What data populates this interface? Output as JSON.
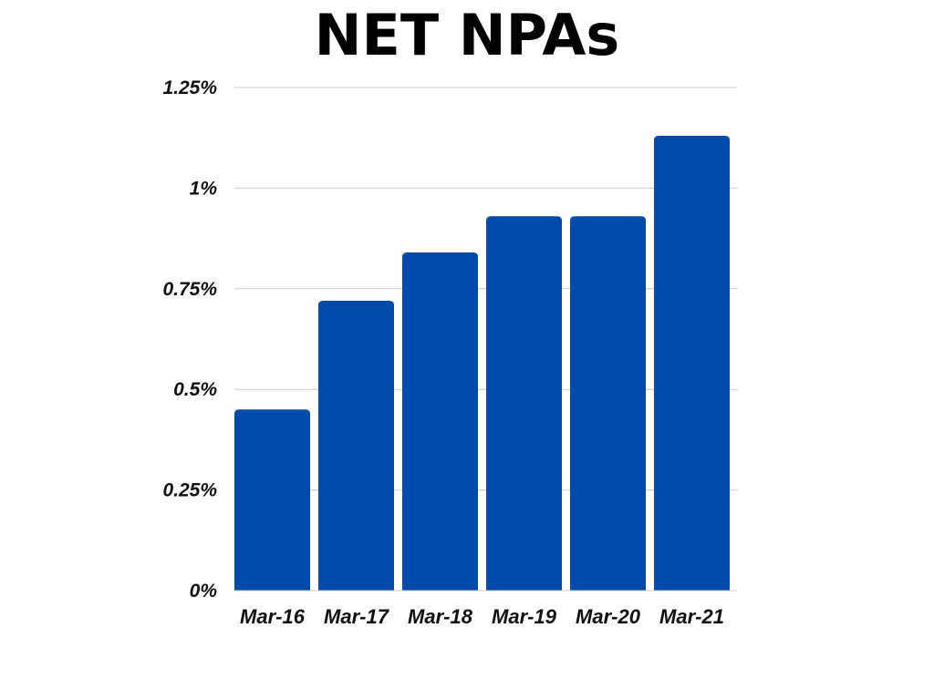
{
  "chart_data": {
    "type": "bar",
    "title": "NET NPAs",
    "xlabel": "",
    "ylabel": "",
    "categories": [
      "Mar-16",
      "Mar-17",
      "Mar-18",
      "Mar-19",
      "Mar-20",
      "Mar-21"
    ],
    "values": [
      0.45,
      0.72,
      0.84,
      0.93,
      0.93,
      1.13
    ],
    "value_unit": "%",
    "ylim": [
      0,
      1.25
    ],
    "y_ticks": [
      {
        "value": 0,
        "label": "0%"
      },
      {
        "value": 0.25,
        "label": "0.25%"
      },
      {
        "value": 0.5,
        "label": "0.5%"
      },
      {
        "value": 0.75,
        "label": "0.75%"
      },
      {
        "value": 1,
        "label": "1%"
      },
      {
        "value": 1.25,
        "label": "1.25%"
      }
    ],
    "grid": true,
    "legend": "none",
    "bar_color": "#024BAD",
    "grid_color": "#cccccc"
  }
}
